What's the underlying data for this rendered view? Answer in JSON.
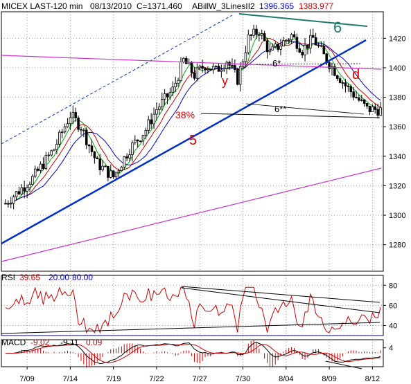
{
  "chart_data": [
    {
      "type": "candlestick",
      "header": {
        "symbol_interval": "MICEX LAST-120 min",
        "date": "08/13/2010",
        "close": "C=1371.460",
        "indicator": "ABillW_3LinesII2",
        "ind_val1": "1396.365",
        "ind_val2": "1383.977"
      },
      "ylim": [
        1262,
        1438
      ],
      "ytick_values": [
        1280,
        1300,
        1320,
        1340,
        1360,
        1380,
        1400,
        1420
      ],
      "ytick_labels": [
        "1280",
        "1300",
        "1320",
        "1340",
        "1360",
        "1380",
        "1400",
        "1420"
      ],
      "x_tick_labels": [
        "7/09",
        "7/14",
        "7/19",
        "7/22",
        "7/27",
        "7/30",
        "8/04",
        "8/09",
        "8/12"
      ],
      "x_tick_index": [
        8,
        24,
        40,
        56,
        72,
        88,
        104,
        120,
        136
      ],
      "n_bars": 140,
      "anchors": [
        [
          0,
          1308
        ],
        [
          10,
          1325
        ],
        [
          18,
          1345
        ],
        [
          24,
          1368
        ],
        [
          28,
          1360
        ],
        [
          34,
          1335
        ],
        [
          40,
          1326
        ],
        [
          46,
          1345
        ],
        [
          52,
          1358
        ],
        [
          56,
          1372
        ],
        [
          62,
          1385
        ],
        [
          66,
          1405
        ],
        [
          70,
          1395
        ],
        [
          74,
          1402
        ],
        [
          78,
          1398
        ],
        [
          82,
          1405
        ],
        [
          86,
          1392
        ],
        [
          90,
          1420
        ],
        [
          94,
          1425
        ],
        [
          98,
          1410
        ],
        [
          102,
          1416
        ],
        [
          106,
          1422
        ],
        [
          110,
          1412
        ],
        [
          114,
          1420
        ],
        [
          118,
          1408
        ],
        [
          122,
          1398
        ],
        [
          126,
          1388
        ],
        [
          130,
          1380
        ],
        [
          134,
          1372
        ],
        [
          139,
          1371.46
        ]
      ],
      "annotations": [
        {
          "text": "6",
          "color": "#1a7a6e"
        },
        {
          "text": "5",
          "color": "#e00000"
        },
        {
          "text": "y",
          "color": "#e00000"
        },
        {
          "text": "d",
          "color": "#e00000"
        },
        {
          "text": "38%",
          "color": "#e00000"
        },
        {
          "text": "6*",
          "color": "#000000"
        },
        {
          "text": "6**",
          "color": "#000000"
        }
      ],
      "colors": {
        "up": "#000000",
        "down": "#000000",
        "sma_fast": "#00b000",
        "sma_mid": "#cc0000",
        "sma_slow": "#0000cc",
        "trend_blue": "#0030c8",
        "trend_magenta": "#cc33cc",
        "trend_teal": "#1a7a6e"
      }
    },
    {
      "type": "line",
      "title": "RSI",
      "values_text": [
        "39.65",
        "20.00",
        "80.00"
      ],
      "ytick_values": [
        40,
        60,
        80
      ],
      "ytick_labels": [
        "40",
        "60",
        "80"
      ],
      "ylim": [
        30,
        85
      ],
      "level_lines": [
        20,
        80
      ],
      "color": "#cc0000"
    },
    {
      "type": "line",
      "title": "MACD",
      "values_text": [
        "-9.02",
        "-9.11",
        "0.09"
      ],
      "ytick_values": [
        4
      ],
      "ytick_labels": [
        "4"
      ],
      "ylim": [
        -10,
        10
      ],
      "colors": {
        "macd": "#000000",
        "signal": "#cc0000",
        "hist": "#cc0000"
      }
    }
  ]
}
